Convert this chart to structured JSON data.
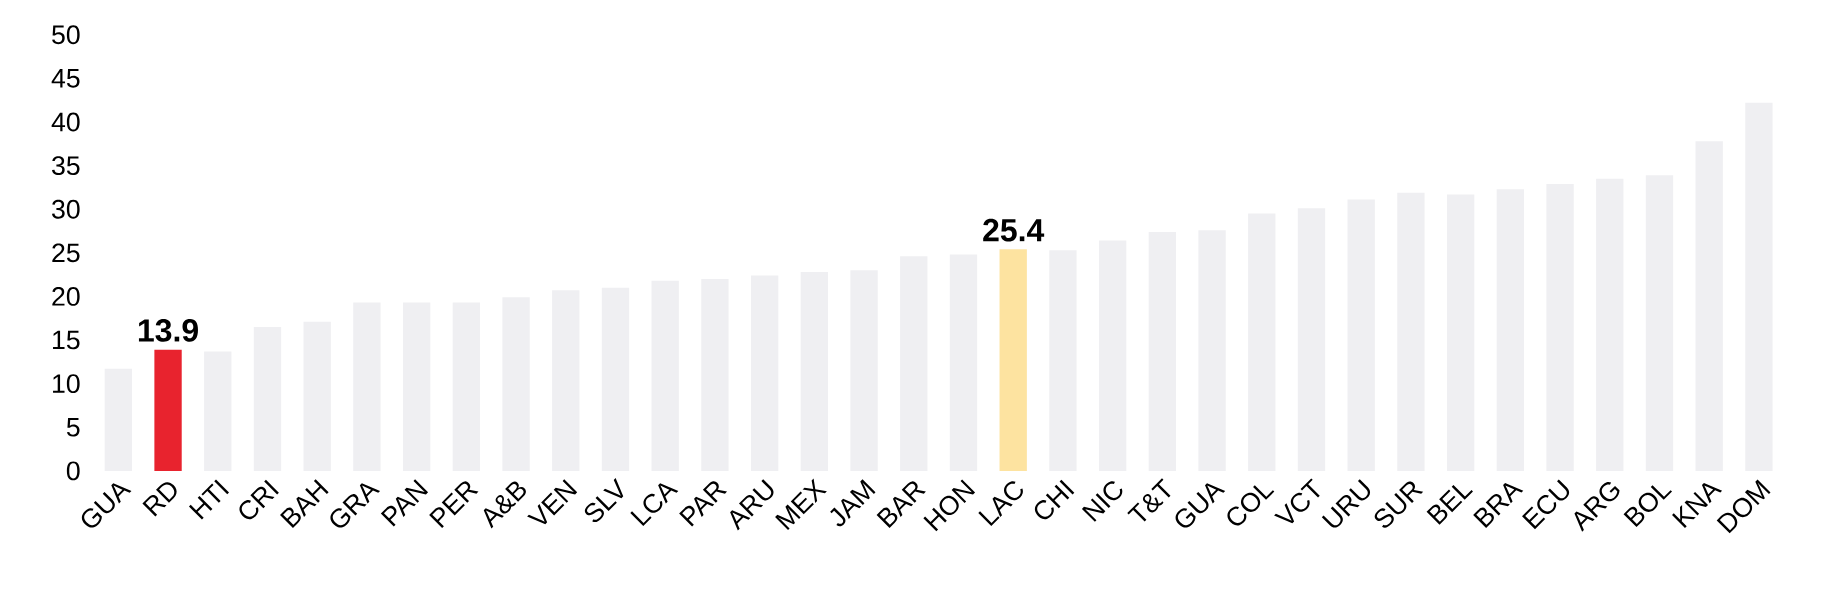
{
  "chart_data": {
    "type": "bar",
    "categories": [
      "GUA",
      "RD",
      "HTI",
      "CRI",
      "BAH",
      "GRA",
      "PAN",
      "PER",
      "A&B",
      "VEN",
      "SLV",
      "LCA",
      "PAR",
      "ARU",
      "MEX",
      "JAM",
      "BAR",
      "HON",
      "LAC",
      "CHI",
      "NIC",
      "T&T",
      "GUA",
      "COL",
      "VCT",
      "URU",
      "SUR",
      "BEL",
      "BRA",
      "ECU",
      "ARG",
      "BOL",
      "KNA",
      "DOM"
    ],
    "values": [
      11.7,
      13.9,
      13.7,
      16.5,
      17.1,
      19.3,
      19.3,
      19.3,
      19.9,
      20.7,
      21.0,
      21.8,
      22.0,
      22.4,
      22.8,
      23.0,
      24.6,
      24.8,
      25.4,
      25.3,
      26.4,
      27.4,
      27.6,
      29.5,
      30.1,
      31.1,
      31.9,
      31.7,
      32.3,
      32.9,
      33.5,
      33.9,
      37.8,
      42.2
    ],
    "colors": [
      "#efeff2",
      "#e8232e",
      "#efeff2",
      "#efeff2",
      "#efeff2",
      "#efeff2",
      "#efeff2",
      "#efeff2",
      "#efeff2",
      "#efeff2",
      "#efeff2",
      "#efeff2",
      "#efeff2",
      "#efeff2",
      "#efeff2",
      "#efeff2",
      "#efeff2",
      "#efeff2",
      "#fde3a0",
      "#efeff2",
      "#efeff2",
      "#efeff2",
      "#efeff2",
      "#efeff2",
      "#efeff2",
      "#efeff2",
      "#efeff2",
      "#efeff2",
      "#efeff2",
      "#efeff2",
      "#efeff2",
      "#efeff2",
      "#efeff2",
      "#efeff2"
    ],
    "value_labels": [
      null,
      "13.9",
      null,
      null,
      null,
      null,
      null,
      null,
      null,
      null,
      null,
      null,
      null,
      null,
      null,
      null,
      null,
      null,
      "25.4",
      null,
      null,
      null,
      null,
      null,
      null,
      null,
      null,
      null,
      null,
      null,
      null,
      null,
      null,
      null
    ],
    "ylim": [
      0,
      50
    ],
    "yticks": [
      0,
      5,
      10,
      15,
      20,
      25,
      30,
      35,
      40,
      45,
      50
    ]
  }
}
